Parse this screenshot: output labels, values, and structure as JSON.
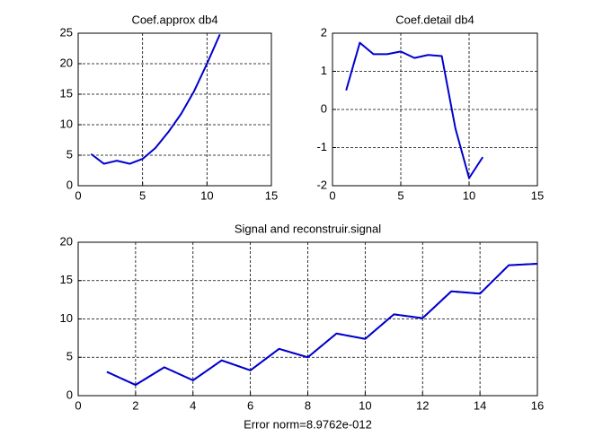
{
  "chart_data": [
    {
      "type": "line",
      "title": "Coef.approx db4",
      "x": [
        1,
        2,
        3,
        4,
        5,
        6,
        7,
        8,
        9,
        10,
        11
      ],
      "series": [
        {
          "color": "#0000cc",
          "linestyle": "solid",
          "values": [
            5.2,
            3.6,
            4.1,
            3.6,
            4.4,
            6.2,
            8.8,
            11.8,
            15.5,
            20,
            24.8
          ]
        }
      ],
      "xlim": [
        0,
        15
      ],
      "xticks": [
        0,
        5,
        10,
        15
      ],
      "ylim": [
        0,
        25
      ],
      "yticks": [
        0,
        5,
        10,
        15,
        20,
        25
      ],
      "grid": true
    },
    {
      "type": "line",
      "title": "Coef.detail db4",
      "x": [
        1,
        2,
        3,
        4,
        5,
        6,
        7,
        8,
        9,
        10,
        11
      ],
      "series": [
        {
          "color": "#0000cc",
          "linestyle": "solid",
          "values": [
            0.5,
            1.75,
            1.45,
            1.45,
            1.52,
            1.35,
            1.43,
            1.4,
            -0.5,
            -1.8,
            -1.25
          ]
        }
      ],
      "xlim": [
        0,
        15
      ],
      "xticks": [
        0,
        5,
        10,
        15
      ],
      "ylim": [
        -2,
        2
      ],
      "yticks": [
        -2,
        -1,
        0,
        1,
        2
      ],
      "grid": true
    },
    {
      "type": "line",
      "title": "Signal and reconstruir.signal",
      "xlabel": "Error norm=8.9762e-012",
      "x": [
        1,
        2,
        3,
        4,
        5,
        6,
        7,
        8,
        9,
        10,
        11,
        12,
        13,
        14,
        15,
        16
      ],
      "series": [
        {
          "color": "#0000cc",
          "linestyle": "solid",
          "values": [
            3.1,
            1.4,
            3.7,
            2.0,
            4.6,
            3.3,
            6.1,
            5.0,
            8.1,
            7.4,
            10.6,
            10.1,
            13.6,
            13.3,
            17.0,
            17.2
          ]
        },
        {
          "color": "#0000cc",
          "linestyle": "dashed",
          "values": [
            3.1,
            1.4,
            3.7,
            2.0,
            4.6,
            3.3,
            6.1,
            5.0,
            8.1,
            7.4,
            10.6,
            10.1,
            13.6,
            13.3,
            17.0,
            17.2
          ]
        }
      ],
      "xlim": [
        0,
        16
      ],
      "xticks": [
        0,
        2,
        4,
        6,
        8,
        10,
        12,
        14,
        16
      ],
      "ylim": [
        0,
        20
      ],
      "yticks": [
        0,
        5,
        10,
        15,
        20
      ],
      "grid": true
    }
  ]
}
